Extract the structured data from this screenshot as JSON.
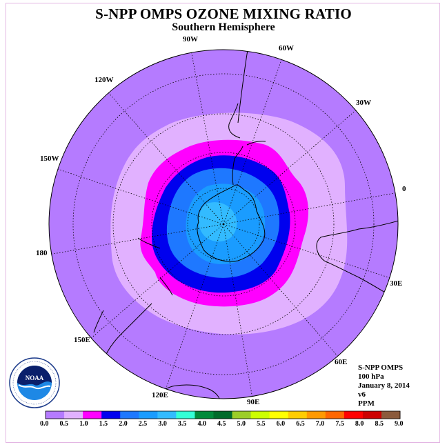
{
  "title": "S-NPP OMPS OZONE MIXING RATIO",
  "subtitle": "Southern Hemisphere",
  "longitude_labels": {
    "w90": "90W",
    "w60": "60W",
    "w30": "30W",
    "e0": "0",
    "w120": "120W",
    "w150": "150W",
    "d180": "180",
    "e30": "30E",
    "e60": "60E",
    "e90": "90E",
    "e120": "120E",
    "e150": "150E"
  },
  "info": {
    "product": "S-NPP OMPS",
    "level": "100 hPa",
    "date": "January 8, 2014",
    "version": "v6",
    "units": "PPM"
  },
  "logo_text": "NOAA",
  "colorbar": {
    "ticks": [
      "0.0",
      "0.5",
      "1.0",
      "1.5",
      "2.0",
      "2.5",
      "3.0",
      "3.5",
      "4.0",
      "4.5",
      "5.0",
      "5.5",
      "6.0",
      "6.5",
      "7.0",
      "7.5",
      "8.0",
      "8.5",
      "9.0"
    ],
    "colors": [
      "#b57bff",
      "#e1b1ff",
      "#ff00ff",
      "#0000ee",
      "#1e78ff",
      "#1a9cff",
      "#33bbff",
      "#33ffd6",
      "#008a3a",
      "#006b2a",
      "#9ccd28",
      "#ccff00",
      "#ffff00",
      "#ffcc00",
      "#ff9900",
      "#ff6600",
      "#ff0000",
      "#cc0000",
      "#8b5a3c"
    ]
  },
  "colors": {
    "bg_purple": "#b57bff",
    "light_lavender": "#e1b1ff",
    "magenta": "#ff00ff",
    "blue": "#0000ee",
    "mid_blue": "#1e78ff",
    "sky_blue": "#1a9cff"
  }
}
